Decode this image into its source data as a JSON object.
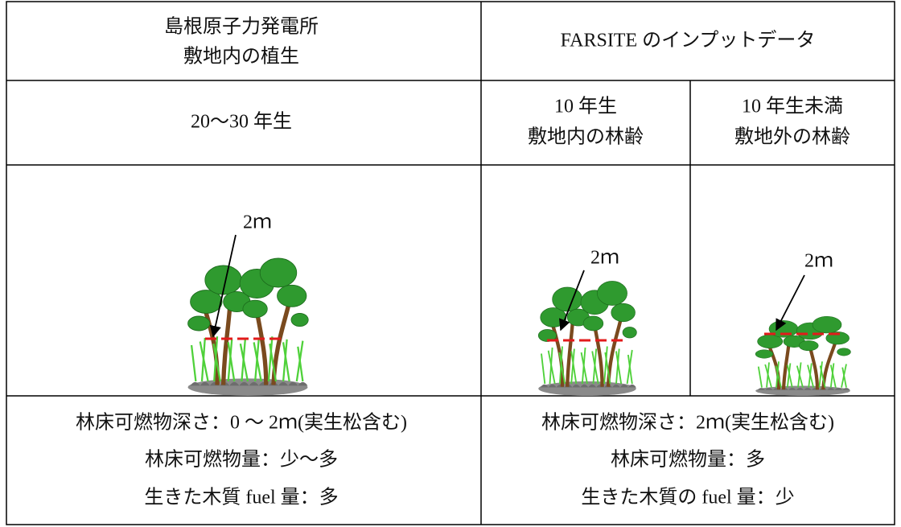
{
  "table": {
    "header": {
      "site_vegetation": [
        "島根原子力発電所",
        "敷地内の植生"
      ],
      "farsite_input": "FARSITE のインプットデータ"
    },
    "age_row": [
      [
        "20～30 年生"
      ],
      [
        "10 年生",
        "敷地内の林齢"
      ],
      [
        "10 年生未満",
        "敷地外の林齢"
      ]
    ],
    "height_labels": [
      "2ｍ",
      "2ｍ",
      "2ｍ"
    ],
    "description": {
      "site": [
        "林床可燃物深さ：0 ～ 2ｍ(実生松含む)",
        "林床可燃物量：少～多",
        "生きた木質 fuel 量：多"
      ],
      "farsite": [
        "林床可燃物深さ：2ｍ(実生松含む)",
        "林床可燃物量：多",
        "生きた木質の fuel 量：少"
      ]
    }
  }
}
